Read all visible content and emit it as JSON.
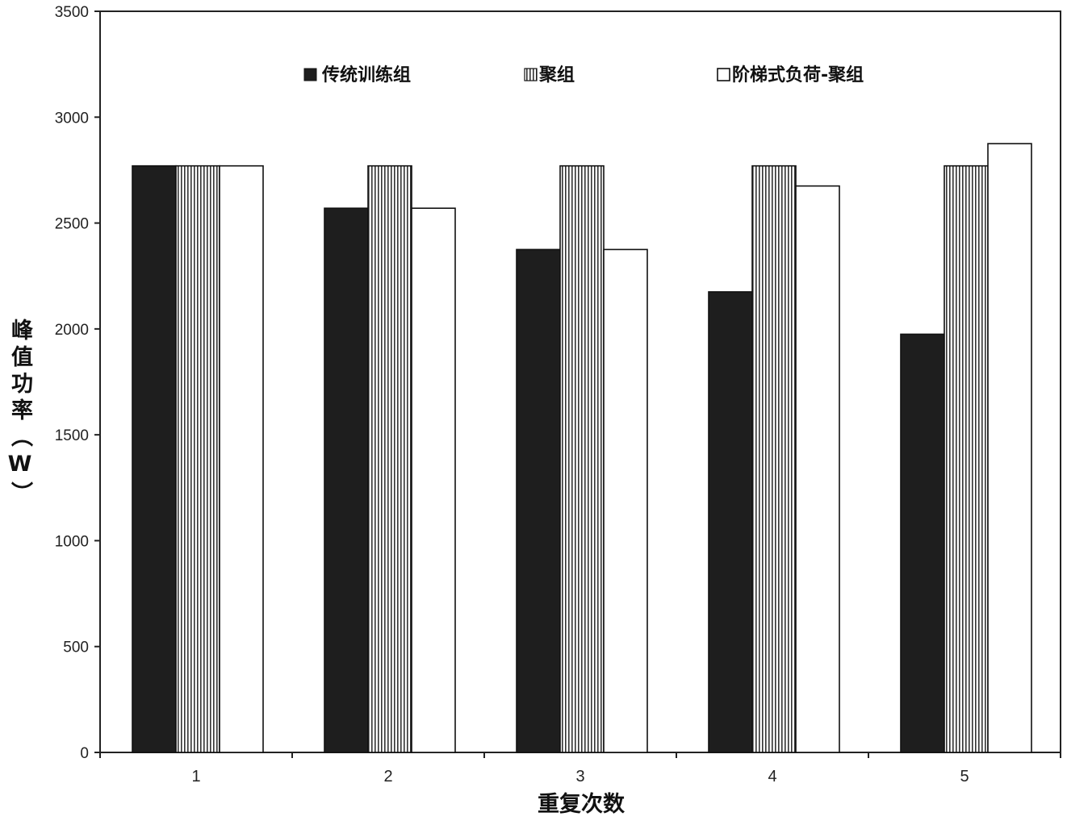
{
  "chart_data": {
    "type": "bar",
    "categories": [
      "1",
      "2",
      "3",
      "4",
      "5"
    ],
    "series": [
      {
        "name": "传统训练组",
        "values": [
          2770,
          2570,
          2375,
          2175,
          1975
        ],
        "fill": "solid-black"
      },
      {
        "name": "聚组",
        "values": [
          2770,
          2770,
          2770,
          2770,
          2770
        ],
        "fill": "vertical-hatch"
      },
      {
        "name": "阶梯式负荷-聚组",
        "values": [
          2770,
          2570,
          2375,
          2675,
          2875
        ],
        "fill": "white"
      }
    ],
    "xlabel": "重复次数",
    "ylabel": "峰值功率（W）",
    "ylim": [
      0,
      3500
    ],
    "yticks": [
      "0",
      "500",
      "1000",
      "1500",
      "2000",
      "2500",
      "3000",
      "3500"
    ],
    "grid": false,
    "legend_position": "top",
    "colors": {
      "axis": "#222222",
      "bar_dark": "#1e1e1e",
      "bar_light": "#ffffff"
    }
  }
}
